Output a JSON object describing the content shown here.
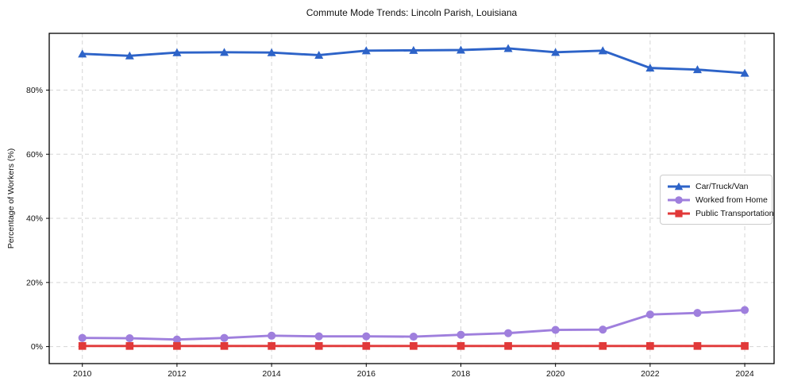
{
  "title": "Commute Mode Trends: Lincoln Parish, Louisiana",
  "chart_data": {
    "type": "line",
    "title": "Commute Mode Trends: Lincoln Parish, Louisiana",
    "xlabel": "",
    "ylabel": "Percentage of Workers (%)",
    "x": [
      2010,
      2011,
      2012,
      2013,
      2014,
      2015,
      2016,
      2017,
      2018,
      2019,
      2020,
      2021,
      2022,
      2023,
      2024
    ],
    "series": [
      {
        "name": "Car/Truck/Van",
        "color": "#2d63c8",
        "marker": "triangle",
        "values": [
          91.3,
          90.7,
          91.7,
          91.8,
          91.7,
          90.9,
          92.3,
          92.4,
          92.5,
          93.0,
          91.8,
          92.3,
          86.9,
          86.4,
          85.3
        ]
      },
      {
        "name": "Worked from Home",
        "color": "#9f7fdd",
        "marker": "circle",
        "values": [
          2.7,
          2.6,
          2.2,
          2.7,
          3.4,
          3.2,
          3.2,
          3.1,
          3.7,
          4.2,
          5.2,
          5.3,
          10.0,
          10.5,
          11.4
        ]
      },
      {
        "name": "Public Transportation",
        "color": "#e13939",
        "marker": "square",
        "values": [
          0.2,
          0.2,
          0.2,
          0.2,
          0.2,
          0.2,
          0.2,
          0.2,
          0.2,
          0.2,
          0.2,
          0.2,
          0.2,
          0.2,
          0.2
        ]
      }
    ],
    "x_ticks": [
      "2010",
      "2012",
      "2014",
      "2016",
      "2018",
      "2020",
      "2022",
      "2024"
    ],
    "x_tick_values": [
      2010,
      2012,
      2014,
      2016,
      2018,
      2020,
      2022,
      2024
    ],
    "y_ticks": [
      "0%",
      "20%",
      "40%",
      "60%",
      "80%"
    ],
    "y_tick_values": [
      0,
      20,
      40,
      60,
      80
    ],
    "xlim": [
      2009.3,
      2024.62
    ],
    "ylim": [
      -5.3,
      97.7
    ],
    "grid": true,
    "legend_position": "center right"
  }
}
